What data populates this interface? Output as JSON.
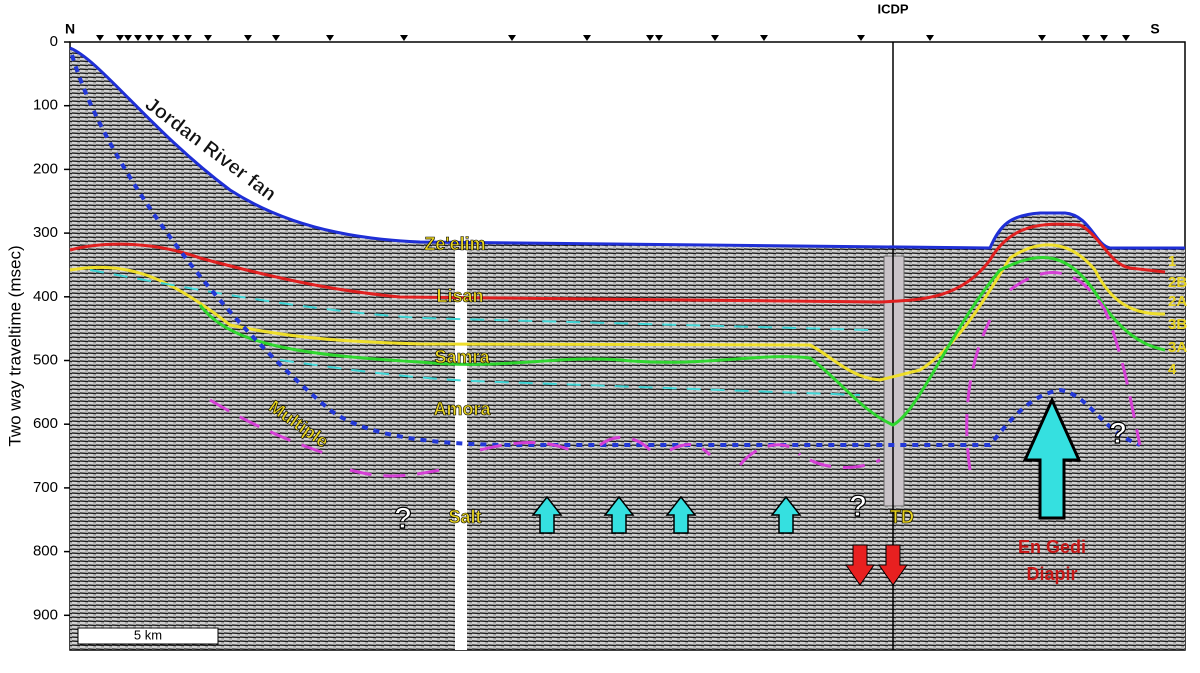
{
  "axis": {
    "label": "Two way traveltime (msec)",
    "ticks": [
      0,
      100,
      200,
      300,
      400,
      500,
      600,
      700,
      800,
      900
    ]
  },
  "compass": {
    "north": "N",
    "south": "S"
  },
  "borehole": "ICDP",
  "scale_bar": "5 km",
  "labels": {
    "fan": "Jordan River fan",
    "zeelim": "Ze'elim",
    "lisan": "Lisan",
    "samra": "Samra",
    "amora": "Amora",
    "multiple": "Multiple",
    "salt": "Salt",
    "td": "TD",
    "diapir_1": "En Gedi",
    "diapir_2": "Diapir"
  },
  "question_marks": [
    "?",
    "?",
    "?"
  ],
  "horizons": [
    "1",
    "2B",
    "2A",
    "3B",
    "3A",
    "4"
  ]
}
